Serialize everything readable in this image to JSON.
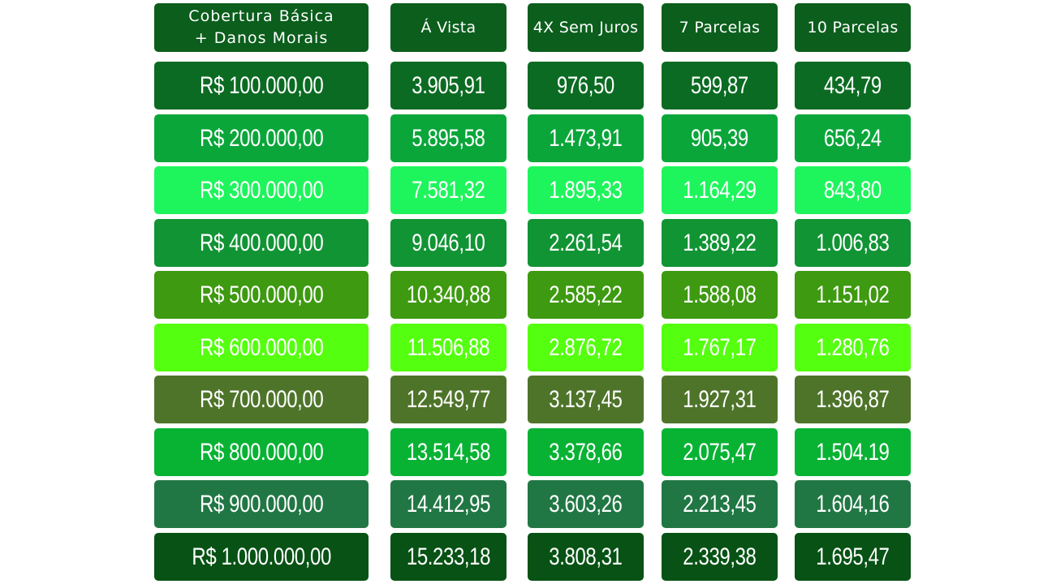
{
  "table": {
    "headers": [
      "Cobertura Básica\n+ Danos Morais",
      "Á Vista",
      "4X Sem Juros",
      "7 Parcelas",
      "10 Parcelas"
    ],
    "rows": [
      {
        "color": "#0b6b22",
        "cells": [
          "R$ 100.000,00",
          "3.905,91",
          "976,50",
          "599,87",
          "434,79"
        ]
      },
      {
        "color": "#0aa63a",
        "cells": [
          "R$ 200.000,00",
          "5.895,58",
          "1.473,91",
          "905,39",
          "656,24"
        ]
      },
      {
        "color": "#1ef55c",
        "cells": [
          "R$ 300.000,00",
          "7.581,32",
          "1.895,33",
          "1.164,29",
          "843,80"
        ]
      },
      {
        "color": "#119434",
        "cells": [
          "R$ 400.000,00",
          "9.046,10",
          "2.261,54",
          "1.389,22",
          "1.006,83"
        ]
      },
      {
        "color": "#3e9a10",
        "cells": [
          "R$ 500.000,00",
          "10.340,88",
          "2.585,22",
          "1.588,08",
          "1.151,02"
        ]
      },
      {
        "color": "#55ff10",
        "cells": [
          "R$ 600.000,00",
          "11.506,88",
          "2.876,72",
          "1.767,17",
          "1.280,76"
        ]
      },
      {
        "color": "#4e742a",
        "cells": [
          "R$ 700.000,00",
          "12.549,77",
          "3.137,45",
          "1.927,31",
          "1.396,87"
        ]
      },
      {
        "color": "#08b334",
        "cells": [
          "R$ 800.000,00",
          "13.514,58",
          "3.378,66",
          "2.075,47",
          "1.504.19"
        ]
      },
      {
        "color": "#217744",
        "cells": [
          "R$ 900.000,00",
          "14.412,95",
          "3.603,26",
          "2.213,45",
          "1.604,16"
        ]
      },
      {
        "color": "#075214",
        "cells": [
          "R$ 1.000.000,00",
          "15.233,18",
          "3.808,31",
          "2.339,38",
          "1.695,47"
        ]
      }
    ]
  }
}
